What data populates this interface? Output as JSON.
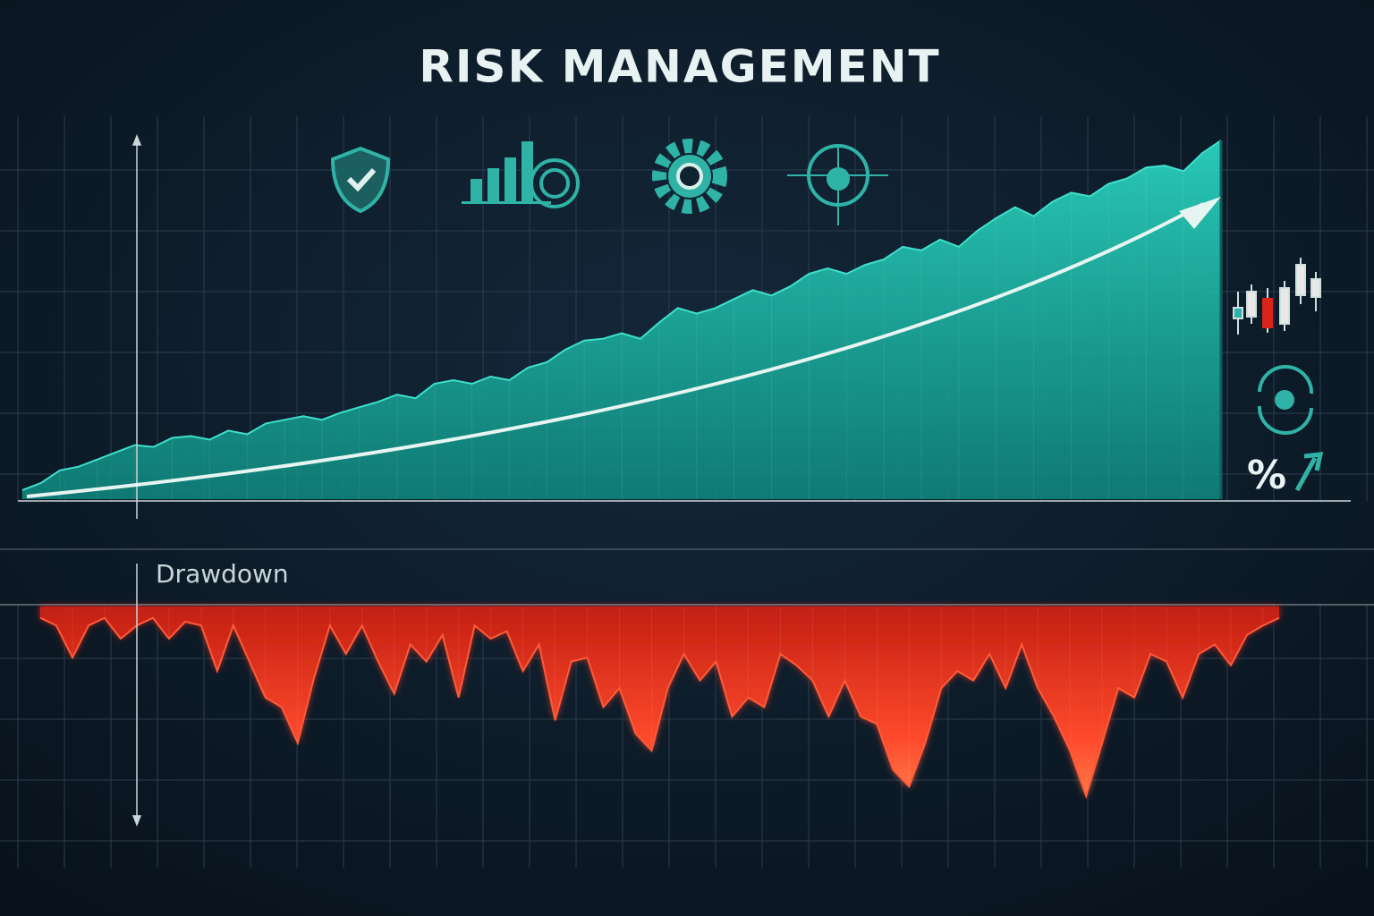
{
  "chart_data": [
    {
      "type": "area",
      "title": "RISK MANAGEMENT",
      "color": "#1fb5a5",
      "ylim": [
        0,
        100
      ],
      "grid": true,
      "values": [
        2.5,
        4.5,
        8,
        9,
        11,
        13,
        15,
        14.5,
        17,
        17.5,
        16.5,
        19,
        18,
        21,
        22,
        23,
        22,
        24,
        25.5,
        27,
        29,
        28,
        32,
        33,
        32,
        34,
        33,
        36.5,
        38,
        41.5,
        44,
        44.5,
        46,
        44.5,
        49,
        53,
        51.5,
        53,
        55.5,
        58,
        56.5,
        59,
        62.5,
        64,
        62.5,
        65,
        66.5,
        70,
        69,
        72,
        70,
        74.5,
        78,
        81,
        78.5,
        82.5,
        85,
        84,
        87.5,
        89,
        92,
        92.5,
        91,
        96,
        99.5
      ]
    },
    {
      "type": "area",
      "title": "Drawdown",
      "color": "#e8321f",
      "ylim": [
        -100,
        0
      ],
      "grid": true,
      "values": [
        -6,
        -10,
        -27,
        -10,
        -6,
        -17,
        -10,
        -6,
        -17,
        -8,
        -10,
        -34,
        -10,
        -29,
        -48,
        -53,
        -72,
        -38,
        -10,
        -25,
        -10,
        -29,
        -46,
        -20,
        -29,
        -15,
        -48,
        -10,
        -17,
        -13,
        -34,
        -20,
        -60,
        -29,
        -27,
        -53,
        -43,
        -67,
        -76,
        -43,
        -25,
        -39,
        -29,
        -58,
        -48,
        -53,
        -25,
        -31,
        -39,
        -58,
        -39,
        -58,
        -62,
        -86,
        -95,
        -72,
        -43,
        -34,
        -39,
        -25,
        -43,
        -20,
        -43,
        -58,
        -76,
        -100,
        -72,
        -43,
        -48,
        -25,
        -29,
        -48,
        -25,
        -20,
        -31,
        -15,
        -10,
        -6
      ]
    }
  ],
  "sidebar": {
    "label": "%"
  }
}
